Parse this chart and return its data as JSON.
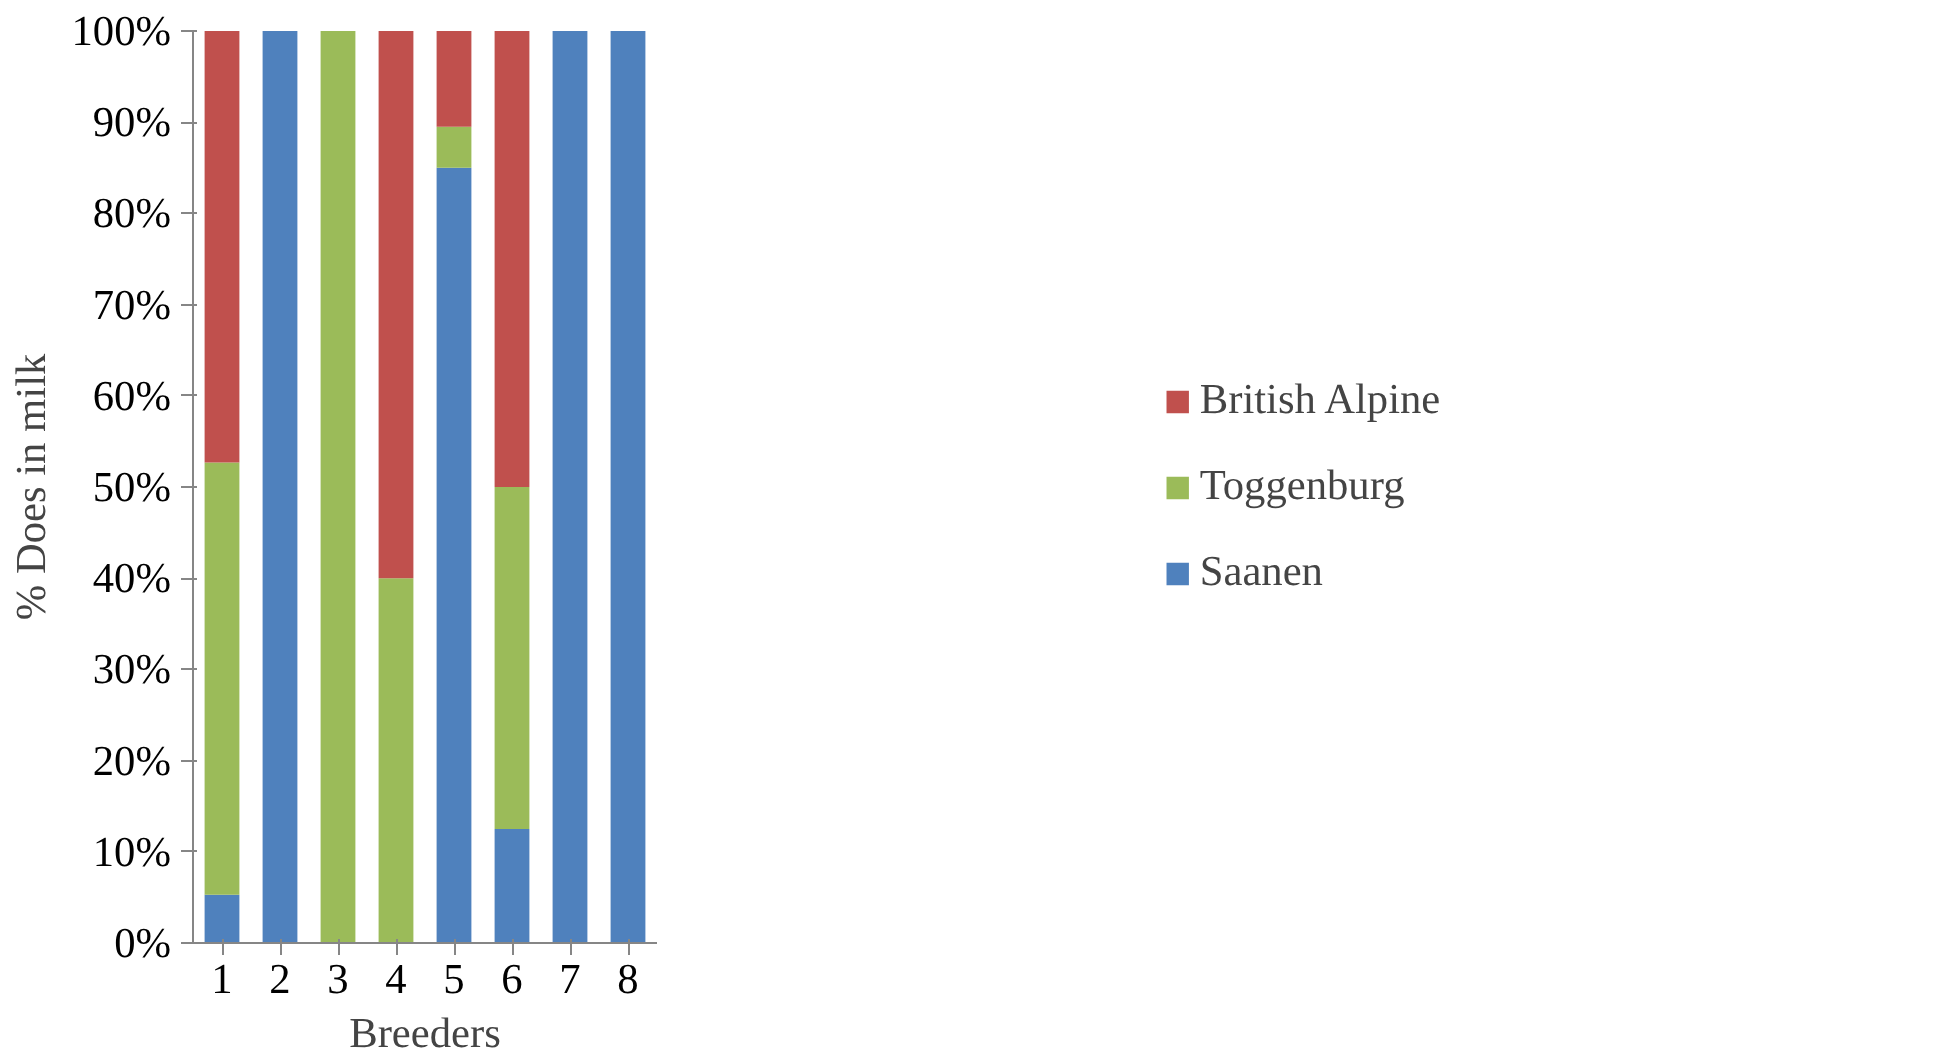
{
  "chart_data": {
    "type": "bar",
    "stacked": true,
    "xlabel": "Breeders",
    "ylabel": "% Does in milk",
    "categories": [
      "1",
      "2",
      "3",
      "4",
      "5",
      "6",
      "7",
      "8"
    ],
    "series": [
      {
        "name": "Saanen",
        "color": "#4f81bd",
        "values": [
          5.3,
          100,
          0,
          0,
          85,
          12.5,
          100,
          100
        ]
      },
      {
        "name": "Toggenburg",
        "color": "#9bbb59",
        "values": [
          47.4,
          0,
          100,
          40,
          4.5,
          37.5,
          0,
          0
        ]
      },
      {
        "name": "British Alpine",
        "color": "#c0504d",
        "values": [
          47.3,
          0,
          0,
          60,
          10.5,
          50,
          0,
          0
        ]
      }
    ],
    "ylim": [
      0,
      100
    ],
    "yticks": [
      {
        "value": 0,
        "label": "0%"
      },
      {
        "value": 10,
        "label": "10%"
      },
      {
        "value": 20,
        "label": "20%"
      },
      {
        "value": 30,
        "label": "30%"
      },
      {
        "value": 40,
        "label": "40%"
      },
      {
        "value": 50,
        "label": "50%"
      },
      {
        "value": 60,
        "label": "60%"
      },
      {
        "value": 70,
        "label": "70%"
      },
      {
        "value": 80,
        "label": "80%"
      },
      {
        "value": 90,
        "label": "90%"
      },
      {
        "value": 100,
        "label": "100%"
      }
    ],
    "grid": false,
    "legend": "right"
  }
}
